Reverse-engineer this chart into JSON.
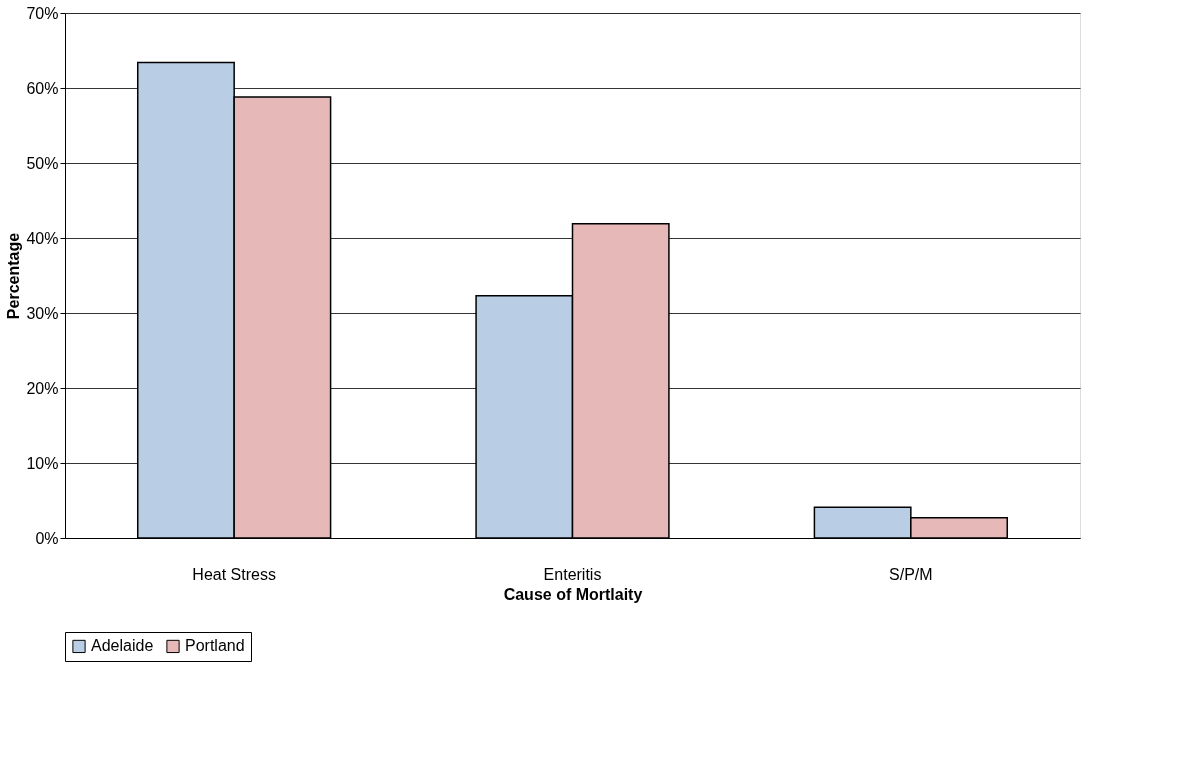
{
  "chart_data": {
    "type": "bar",
    "xlabel": "Cause of Mortlaity",
    "ylabel": "Percentage",
    "categories": [
      "Heat Stress",
      "Enteritis",
      "S/P/M"
    ],
    "series": [
      {
        "name": "Adelaide",
        "color": "#b9cde5",
        "values": [
          63.4,
          32.3,
          4.1
        ]
      },
      {
        "name": "Portland",
        "color": "#e6b9b8",
        "values": [
          58.8,
          41.9,
          2.7
        ]
      }
    ],
    "ylim": [
      0,
      70
    ],
    "yticks": [
      {
        "value": 0,
        "label": "0%"
      },
      {
        "value": 10,
        "label": "10%"
      },
      {
        "value": 20,
        "label": "20%"
      },
      {
        "value": 30,
        "label": "30%"
      },
      {
        "value": 40,
        "label": "40%"
      },
      {
        "value": 50,
        "label": "50%"
      },
      {
        "value": 60,
        "label": "60%"
      },
      {
        "value": 70,
        "label": "70%"
      }
    ],
    "grid": "y",
    "legend": "bottom"
  }
}
